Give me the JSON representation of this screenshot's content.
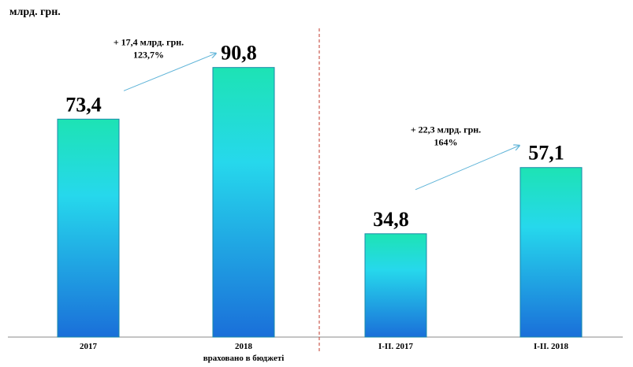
{
  "chart_data": {
    "type": "bar",
    "unit_label": "млрд. грн.",
    "categories": [
      {
        "label": "2017",
        "sublabel": ""
      },
      {
        "label": "2018",
        "sublabel": "враховано  в бюджеті"
      },
      {
        "label": "I-II. 2017",
        "sublabel": ""
      },
      {
        "label": "I-II. 2018",
        "sublabel": ""
      }
    ],
    "values": [
      73.4,
      90.8,
      34.8,
      57.1
    ],
    "value_labels": [
      "73,4",
      "90,8",
      "34,8",
      "57,1"
    ],
    "ylim": [
      0,
      100
    ],
    "grid": false,
    "legend": "none",
    "annotations": [
      {
        "from": 0,
        "to": 1,
        "lines": [
          "+ 17,4 млрд. грн.",
          "123,7%"
        ]
      },
      {
        "from": 2,
        "to": 3,
        "lines": [
          "+ 22,3 млрд. грн.",
          "164%"
        ]
      }
    ],
    "colors": {
      "bar_top": "#1de3b4",
      "bar_middle": "#26d8ec",
      "bar_bottom": "#1a6fd9",
      "bar_edge": "#1a8aa8",
      "arrow": "#5fb4d8",
      "separator": "#c0392b",
      "axis": "#888888"
    }
  }
}
